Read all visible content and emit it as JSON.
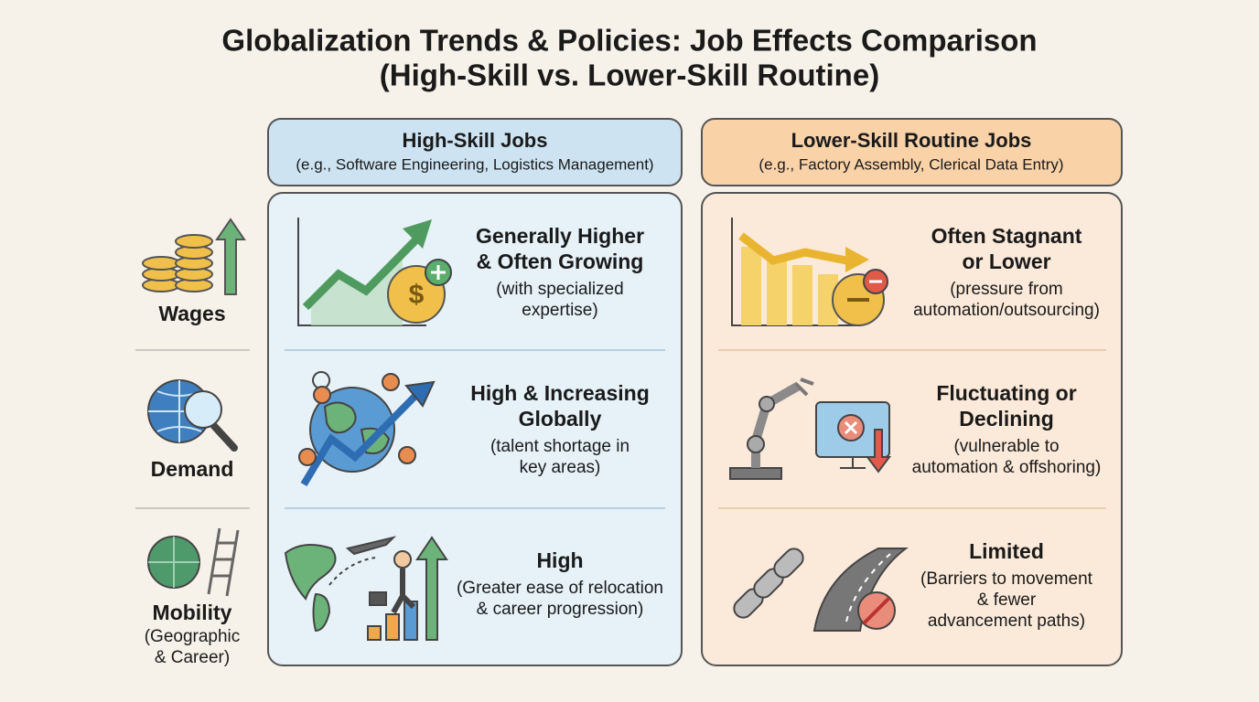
{
  "title": [
    "Globalization Trends & Policies: Job Effects Comparison",
    "(High-Skill vs. Lower-Skill Routine)"
  ],
  "rows": [
    {
      "label": "Wages"
    },
    {
      "label": "Demand"
    },
    {
      "label": "Mobility",
      "sublabel": [
        "(Geographic",
        "& Career)"
      ]
    }
  ],
  "columns": [
    {
      "title": "High-Skill Jobs",
      "subtitle": "(e.g., Software Engineering, Logistics Management)",
      "cells": [
        {
          "heading": [
            "Generally Higher",
            "& Often Growing"
          ],
          "note": [
            "(with specialized",
            "expertise)"
          ]
        },
        {
          "heading": [
            "High & Increasing",
            "Globally"
          ],
          "note": [
            "(talent shortage in",
            "key areas)"
          ]
        },
        {
          "heading": [
            "High"
          ],
          "note": [
            "(Greater ease of relocation",
            "& career progression)"
          ]
        }
      ]
    },
    {
      "title": "Lower-Skill Routine Jobs",
      "subtitle": "(e.g., Factory Assembly, Clerical Data Entry)",
      "cells": [
        {
          "heading": [
            "Often Stagnant",
            "or Lower"
          ],
          "note": [
            "(pressure from",
            "automation/outsourcing)"
          ]
        },
        {
          "heading": [
            "Fluctuating or",
            "Declining"
          ],
          "note": [
            "(vulnerable to",
            "automation & offshoring)"
          ]
        },
        {
          "heading": [
            "Limited"
          ],
          "note": [
            "(Barriers to movement",
            "& fewer",
            "advancement paths)"
          ]
        }
      ]
    }
  ]
}
